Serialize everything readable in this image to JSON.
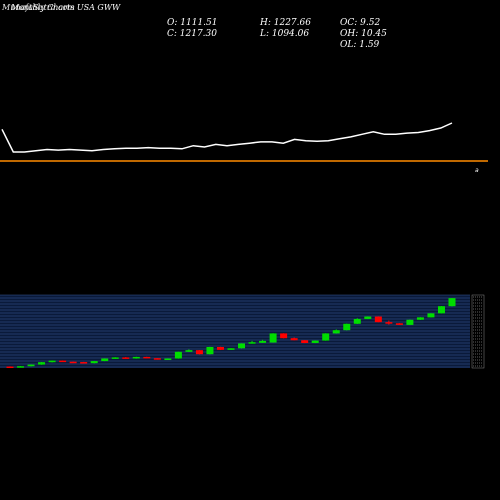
{
  "header": {
    "title": "MunafaSutra.com",
    "subtitle": "Monthly Charts USA GWW"
  },
  "ohlc": {
    "open": "O: 1111.51",
    "high": "H: 1227.66",
    "oc": "OC: 9.52",
    "close": "C: 1217.30",
    "low": "L: 1094.06",
    "oh": "OH: 10.45",
    "ol": "OL: 1.59"
  },
  "colors": {
    "background": "#000000",
    "up": "#00dd00",
    "down": "#ff0000",
    "line": "#ffffff",
    "divider": "#ff8c00",
    "band": "#0a1a3a",
    "grid": "#3a5a9a"
  },
  "chart_data": {
    "type": "candlestick",
    "marker_label": "a",
    "line_series": [
      {
        "x": 0,
        "y": 20
      },
      {
        "x": 1,
        "y": 2
      },
      {
        "x": 2,
        "y": 2
      },
      {
        "x": 3,
        "y": 3
      },
      {
        "x": 4,
        "y": 4
      },
      {
        "x": 5,
        "y": 3.5
      },
      {
        "x": 6,
        "y": 4
      },
      {
        "x": 7,
        "y": 3.5
      },
      {
        "x": 8,
        "y": 3
      },
      {
        "x": 9,
        "y": 4
      },
      {
        "x": 10,
        "y": 4.5
      },
      {
        "x": 11,
        "y": 5
      },
      {
        "x": 12,
        "y": 5
      },
      {
        "x": 13,
        "y": 5.5
      },
      {
        "x": 14,
        "y": 5
      },
      {
        "x": 15,
        "y": 5
      },
      {
        "x": 16,
        "y": 4.5
      },
      {
        "x": 17,
        "y": 7
      },
      {
        "x": 18,
        "y": 6
      },
      {
        "x": 19,
        "y": 8
      },
      {
        "x": 20,
        "y": 7
      },
      {
        "x": 21,
        "y": 8
      },
      {
        "x": 22,
        "y": 9
      },
      {
        "x": 23,
        "y": 10
      },
      {
        "x": 24,
        "y": 10
      },
      {
        "x": 25,
        "y": 9
      },
      {
        "x": 26,
        "y": 12
      },
      {
        "x": 27,
        "y": 11
      },
      {
        "x": 28,
        "y": 10.5
      },
      {
        "x": 29,
        "y": 11
      },
      {
        "x": 30,
        "y": 12.5
      },
      {
        "x": 31,
        "y": 14
      },
      {
        "x": 32,
        "y": 16
      },
      {
        "x": 33,
        "y": 18
      },
      {
        "x": 34,
        "y": 16
      },
      {
        "x": 35,
        "y": 16
      },
      {
        "x": 36,
        "y": 17
      },
      {
        "x": 37,
        "y": 17.5
      },
      {
        "x": 38,
        "y": 19
      },
      {
        "x": 39,
        "y": 21
      },
      {
        "x": 40,
        "y": 25
      }
    ],
    "candles": [
      {
        "o": 0.8,
        "c": 0.6,
        "h": 0.9,
        "l": 0.5,
        "dir": "down"
      },
      {
        "o": 0.6,
        "c": 1.0,
        "h": 1.1,
        "l": 0.5,
        "dir": "up"
      },
      {
        "o": 1.0,
        "c": 2.0,
        "h": 2.1,
        "l": 0.9,
        "dir": "up"
      },
      {
        "o": 2.0,
        "c": 3.5,
        "h": 3.6,
        "l": 1.9,
        "dir": "up"
      },
      {
        "o": 3.5,
        "c": 4.5,
        "h": 4.6,
        "l": 3.4,
        "dir": "up"
      },
      {
        "o": 4.5,
        "c": 3.8,
        "h": 4.6,
        "l": 3.7,
        "dir": "down"
      },
      {
        "o": 3.8,
        "c": 3.6,
        "h": 3.9,
        "l": 3.5,
        "dir": "down"
      },
      {
        "o": 3.6,
        "c": 3.2,
        "h": 3.7,
        "l": 3.1,
        "dir": "down"
      },
      {
        "o": 2.9,
        "c": 4.2,
        "h": 4.3,
        "l": 2.8,
        "dir": "up"
      },
      {
        "o": 4.2,
        "c": 5.8,
        "h": 5.9,
        "l": 4.1,
        "dir": "up"
      },
      {
        "o": 5.8,
        "c": 6.5,
        "h": 6.6,
        "l": 5.7,
        "dir": "up"
      },
      {
        "o": 6.5,
        "c": 5.8,
        "h": 6.7,
        "l": 5.7,
        "dir": "down"
      },
      {
        "o": 5.8,
        "c": 6.8,
        "h": 6.9,
        "l": 5.7,
        "dir": "up"
      },
      {
        "o": 6.8,
        "c": 6.0,
        "h": 6.9,
        "l": 5.9,
        "dir": "down"
      },
      {
        "o": 6.0,
        "c": 5.2,
        "h": 6.1,
        "l": 5.1,
        "dir": "down"
      },
      {
        "o": 5.2,
        "c": 5.8,
        "h": 5.9,
        "l": 5.1,
        "dir": "up"
      },
      {
        "o": 5.8,
        "c": 10.0,
        "h": 10.1,
        "l": 5.7,
        "dir": "up"
      },
      {
        "o": 10.0,
        "c": 11.0,
        "h": 11.5,
        "l": 9.9,
        "dir": "up"
      },
      {
        "o": 11.0,
        "c": 8.5,
        "h": 11.1,
        "l": 8.4,
        "dir": "down"
      },
      {
        "o": 8.5,
        "c": 13.0,
        "h": 13.1,
        "l": 8.4,
        "dir": "up"
      },
      {
        "o": 13.0,
        "c": 11.2,
        "h": 13.1,
        "l": 11.1,
        "dir": "down"
      },
      {
        "o": 11.2,
        "c": 12.2,
        "h": 12.3,
        "l": 11.1,
        "dir": "up"
      },
      {
        "o": 12.2,
        "c": 15.2,
        "h": 15.3,
        "l": 12.1,
        "dir": "up"
      },
      {
        "o": 15.2,
        "c": 16.0,
        "h": 16.8,
        "l": 15.1,
        "dir": "up"
      },
      {
        "o": 15.6,
        "c": 16.8,
        "h": 17.5,
        "l": 15.5,
        "dir": "up"
      },
      {
        "o": 15.8,
        "c": 21.5,
        "h": 21.6,
        "l": 15.7,
        "dir": "up"
      },
      {
        "o": 21.5,
        "c": 18.5,
        "h": 21.6,
        "l": 18.4,
        "dir": "down"
      },
      {
        "o": 18.5,
        "c": 17.2,
        "h": 18.9,
        "l": 17.1,
        "dir": "down"
      },
      {
        "o": 17.2,
        "c": 15.5,
        "h": 17.3,
        "l": 15.4,
        "dir": "down"
      },
      {
        "o": 15.5,
        "c": 17.0,
        "h": 17.1,
        "l": 15.4,
        "dir": "up"
      },
      {
        "o": 17.0,
        "c": 21.5,
        "h": 21.6,
        "l": 16.9,
        "dir": "up"
      },
      {
        "o": 21.5,
        "c": 23.5,
        "h": 24.0,
        "l": 21.4,
        "dir": "up"
      },
      {
        "o": 23.5,
        "c": 27.5,
        "h": 27.6,
        "l": 23.4,
        "dir": "up"
      },
      {
        "o": 27.5,
        "c": 30.5,
        "h": 31.0,
        "l": 27.4,
        "dir": "up"
      },
      {
        "o": 30.5,
        "c": 32.0,
        "h": 32.1,
        "l": 30.4,
        "dir": "up"
      },
      {
        "o": 32.0,
        "c": 28.5,
        "h": 32.1,
        "l": 28.4,
        "dir": "down"
      },
      {
        "o": 28.5,
        "c": 27.8,
        "h": 29.5,
        "l": 27.0,
        "dir": "down"
      },
      {
        "o": 27.8,
        "c": 26.8,
        "h": 27.9,
        "l": 26.7,
        "dir": "down"
      },
      {
        "o": 26.8,
        "c": 30.0,
        "h": 30.1,
        "l": 26.7,
        "dir": "up"
      },
      {
        "o": 30.0,
        "c": 31.5,
        "h": 31.6,
        "l": 29.9,
        "dir": "up"
      },
      {
        "o": 31.5,
        "c": 34.0,
        "h": 34.1,
        "l": 31.4,
        "dir": "up"
      },
      {
        "o": 34.0,
        "c": 38.5,
        "h": 38.6,
        "l": 33.9,
        "dir": "up"
      },
      {
        "o": 38.5,
        "c": 43.5,
        "h": 43.6,
        "l": 38.4,
        "dir": "up"
      }
    ]
  }
}
